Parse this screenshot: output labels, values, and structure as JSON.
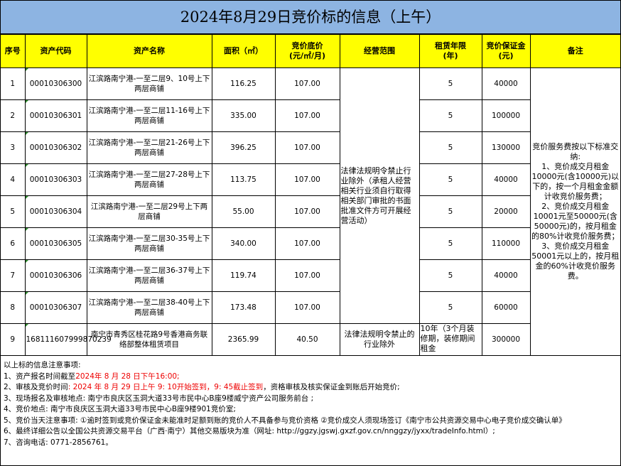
{
  "title": "2024年8月29日竞价标的信息（上午）",
  "headers": [
    "序号",
    "资产代码",
    "资产名称",
    "面积（㎡）",
    "竞价底价\n(元/㎡/月)",
    "经营范围",
    "租赁年限\n(年)",
    "竞价保证金\n(元)",
    "备注"
  ],
  "rows": [
    {
      "no": "1",
      "code": "00010306300",
      "name": "江滨路南宁港-一至二层9、10号上下两层商铺",
      "area": "116.25",
      "price": "107.00",
      "years": "5",
      "deposit": "40000"
    },
    {
      "no": "2",
      "code": "00010306301",
      "name": "江滨路南宁港-一至二层11-16号上下两层商铺",
      "area": "335.00",
      "price": "107.00",
      "years": "5",
      "deposit": "100000"
    },
    {
      "no": "3",
      "code": "00010306302",
      "name": "江滨路南宁港-一至二层21-26号上下两层商铺",
      "area": "396.25",
      "price": "107.00",
      "years": "5",
      "deposit": "130000"
    },
    {
      "no": "4",
      "code": "00010306303",
      "name": "江滨路南宁港-一至二层27-28号上下两层商铺",
      "area": "113.75",
      "price": "107.00",
      "years": "5",
      "deposit": "40000"
    },
    {
      "no": "5",
      "code": "00010306304",
      "name": "江滨路南宁港-一至二层29号上下两层商铺",
      "area": "55.00",
      "price": "107.00",
      "years": "5",
      "deposit": "20000"
    },
    {
      "no": "6",
      "code": "00010306305",
      "name": "江滨路南宁港-一至二层30-35号上下两层商铺",
      "area": "340.00",
      "price": "107.00",
      "years": "5",
      "deposit": "110000"
    },
    {
      "no": "7",
      "code": "00010306306",
      "name": "江滨路南宁港-一至二层36-37号上下两层商铺",
      "area": "119.74",
      "price": "107.00",
      "years": "5",
      "deposit": "40000"
    },
    {
      "no": "8",
      "code": "00010306307",
      "name": "江滨路南宁港-一至二层38-40号上下两层商铺",
      "area": "173.48",
      "price": "107.00",
      "years": "5",
      "deposit": "60000"
    },
    {
      "no": "9",
      "code": "168111607999870239",
      "name": "南宁市青秀区桂花路9号香港商务联络部整体租赁项目",
      "area": "2365.99",
      "price": "40.50",
      "years": "10年（3个月装修期，装修期间租金",
      "deposit": "300000"
    }
  ],
  "scope_1_8": "法律法规明令禁止行业除外（承租人经营相关行业须自行取得相关部门审批的书面批准文件方可开展经营活动）",
  "scope_9": "法律法规明令禁止的行业除外",
  "remark": "竞价服务费按以下标准交纳:\n1、竞价成交月租金10000元(含10000元)以下的，按一个月租金金额计收竞价服务费；\n2、竞价成交月租金10001元至50000元(含50000元)的，按月租金的80%计收竞价服务费；\n3、竞价成交月租金50001元以上的，按月租金的60%计收竞价服务费。",
  "notes": {
    "heading": "以上标的信息注意事项:",
    "n1_label": "1、资产报名时间截至",
    "n1_red": "2024年 8 月 28 日下午16:00;",
    "n2_label": "2、审核及竞价时间",
    "n2_red": ": 2024 年 8 月 29 日上午 9: 10开始签到，9: 45截止签到",
    "n2_rest": "，资格审核及核实保证金到账后开始竞价;",
    "n3": "3、现场报名及审核地点: 南宁市良庆区玉洞大道33号市民中心B座9楼威宁资产公司服务前台 ;",
    "n4": "4、竞价地点: 南宁市良庆区玉洞大道33号市民中心B座9楼901竞价室;",
    "n5": "5、竞价当天注意事项: ①逾时签到或竞价保证金未能准时足额到账的竞价人不具备参与竞价资格 ②竞价成交人须现场签订《南宁市公共资源交易中心电子竞价成交确认单》",
    "n6": "6、最终详细公告以全国公共资源交易平台（广西·南宁）其他交易版块为准（网址: http://ggzy.jgswj.gxzf.gov.cn/nnggzy/jyxx/tradeInfo.html）;",
    "n7": "7、咨询电话: 0771-2856761。"
  },
  "colors": {
    "title_bg": "#8db4e2",
    "header_bg": "#ffff00",
    "highlight": "#ee0000"
  }
}
